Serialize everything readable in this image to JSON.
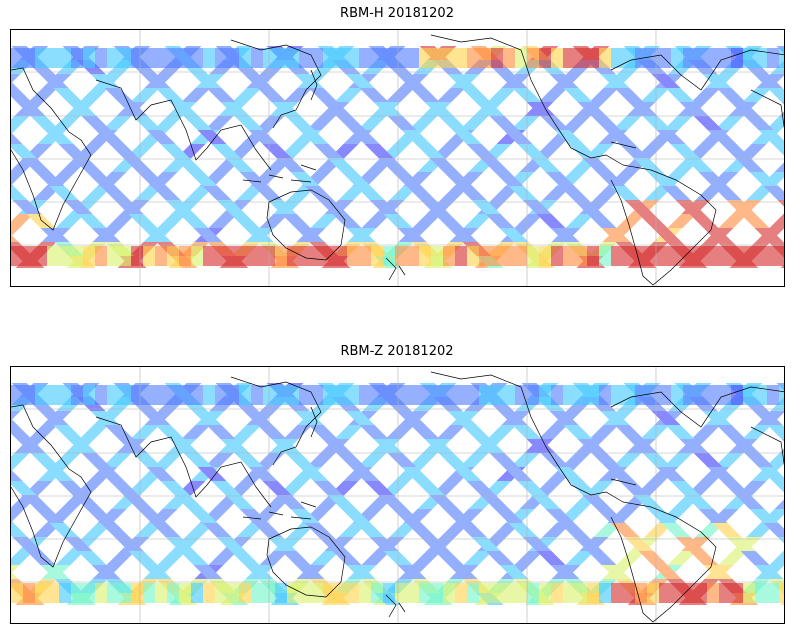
{
  "panels": [
    {
      "title": "RBM-H 20181202",
      "variant": "H"
    },
    {
      "title": "RBM-Z 20181202",
      "variant": "Z"
    }
  ],
  "colormap": {
    "name": "jet",
    "alpha": 0.6,
    "colors": [
      "#3b3bff",
      "#4f7bff",
      "#3fc8ff",
      "#6ff5c8",
      "#d8f26a",
      "#ffd24a",
      "#ff8a3a",
      "#d62b2b"
    ]
  },
  "map": {
    "projection": "PlateCarree",
    "central_longitude": 180,
    "grid": true,
    "coastlines": true,
    "pass_direction": "ascending-and-descending diagonal swaths"
  }
}
